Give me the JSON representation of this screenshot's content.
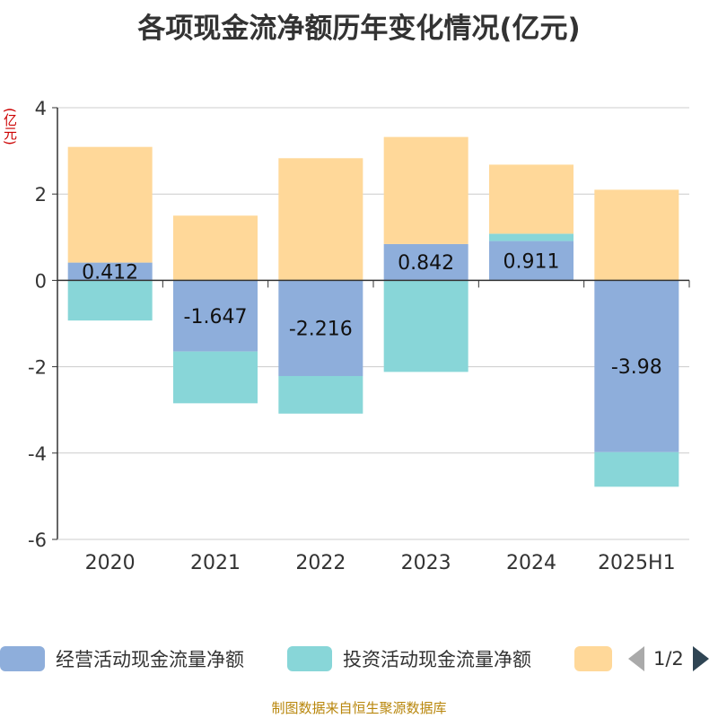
{
  "title": "各项现金流净额历年变化情况(亿元)",
  "unit_label": "(亿元)",
  "source": "制图数据来自恒生聚源数据库",
  "legend": {
    "items": [
      {
        "label": "经营活动现金流量净额",
        "color": "#8eaedb"
      },
      {
        "label": "投资活动现金流量净额",
        "color": "#88d6d8"
      },
      {
        "label": "",
        "color": "#ffd899"
      }
    ],
    "page": "1/2"
  },
  "chart_data": {
    "type": "bar",
    "stacked": true,
    "categories": [
      "2020",
      "2021",
      "2022",
      "2023",
      "2024",
      "2025H1"
    ],
    "ylim": [
      -6,
      4
    ],
    "yticks": [
      4,
      2,
      0,
      -2,
      -4,
      -6
    ],
    "series": [
      {
        "name": "经营活动现金流量净额",
        "color": "#8eaedb",
        "values": [
          0.412,
          -1.647,
          -2.216,
          0.842,
          0.911,
          -3.98
        ],
        "labels": [
          "0.412",
          "-1.647",
          "-2.216",
          "0.842",
          "0.911",
          "-3.98"
        ]
      },
      {
        "name": "投资活动现金流量净额",
        "color": "#88d6d8",
        "values": [
          -0.93,
          -1.2,
          -0.87,
          -2.12,
          0.17,
          -0.8
        ]
      },
      {
        "name": "",
        "color": "#ffd899",
        "values": [
          2.68,
          1.5,
          2.83,
          2.48,
          1.6,
          2.1
        ]
      }
    ]
  }
}
